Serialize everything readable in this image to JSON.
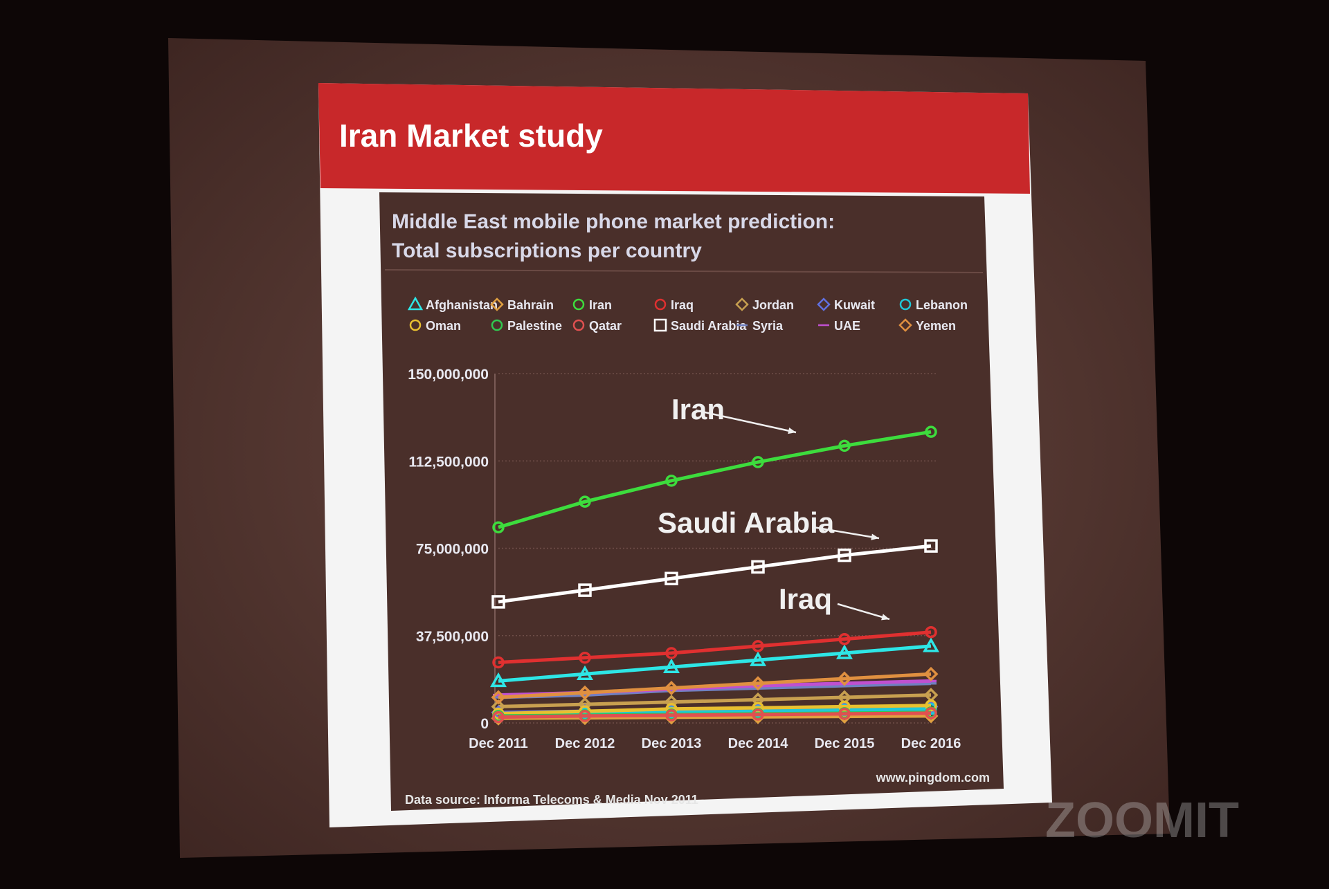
{
  "slide_title": "Iran Market study",
  "watermark": "ZOOMIT",
  "chart_data": {
    "type": "line",
    "title": [
      "Middle East mobile phone market prediction:",
      "Total subscriptions per country"
    ],
    "source": "Data source: Informa Telecoms & Media Nov 2011",
    "credit": "www.pingdom.com",
    "annotations": [
      "Iran",
      "Saudi Arabia",
      "Iraq"
    ],
    "categories": [
      "Dec 2011",
      "Dec 2012",
      "Dec 2013",
      "Dec 2014",
      "Dec 2015",
      "Dec 2016"
    ],
    "ylim": [
      0,
      150000000
    ],
    "yticks": [
      0,
      {
        "value": 37500000,
        "label": "37,500,000"
      },
      {
        "value": 75000000,
        "label": "75,000,000"
      },
      {
        "value": 112500000,
        "label": "112,500,000"
      },
      {
        "value": 150000000,
        "label": "150,000,000"
      }
    ],
    "grid": true,
    "series": [
      {
        "name": "Afghanistan",
        "color": "#2ee6e6",
        "marker": "triangle",
        "values": [
          18000000,
          21000000,
          24000000,
          27000000,
          30000000,
          33000000
        ]
      },
      {
        "name": "Bahrain",
        "color": "#e0a040",
        "marker": "diamond",
        "values": [
          2000000,
          2200000,
          2400000,
          2600000,
          2800000,
          3000000
        ]
      },
      {
        "name": "Iran",
        "color": "#3ddc3d",
        "marker": "circle",
        "values": [
          84000000,
          95000000,
          104000000,
          112000000,
          119000000,
          125000000
        ]
      },
      {
        "name": "Iraq",
        "color": "#e03030",
        "marker": "circle",
        "values": [
          26000000,
          28000000,
          30000000,
          33000000,
          36000000,
          39000000
        ]
      },
      {
        "name": "Jordan",
        "color": "#c8a050",
        "marker": "diamond",
        "values": [
          7000000,
          8000000,
          9000000,
          10000000,
          11000000,
          12000000
        ]
      },
      {
        "name": "Kuwait",
        "color": "#6070e0",
        "marker": "diamond",
        "values": [
          4500000,
          5000000,
          5500000,
          6000000,
          6500000,
          7000000
        ]
      },
      {
        "name": "Lebanon",
        "color": "#20c8d8",
        "marker": "circle",
        "values": [
          3500000,
          4000000,
          4500000,
          5000000,
          5500000,
          6000000
        ]
      },
      {
        "name": "Oman",
        "color": "#e8c030",
        "marker": "circle",
        "values": [
          4000000,
          5000000,
          6000000,
          6500000,
          7000000,
          7500000
        ]
      },
      {
        "name": "Palestine",
        "color": "#30c850",
        "marker": "circle",
        "values": [
          3000000,
          3300000,
          3600000,
          3900000,
          4200000,
          4500000
        ]
      },
      {
        "name": "Qatar",
        "color": "#e05050",
        "marker": "circle",
        "values": [
          2500000,
          3000000,
          3300000,
          3600000,
          3900000,
          4200000
        ]
      },
      {
        "name": "Saudi Arabia",
        "color": "#ffffff",
        "marker": "square",
        "values": [
          52000000,
          57000000,
          62000000,
          67000000,
          72000000,
          76000000
        ]
      },
      {
        "name": "Syria",
        "color": "#7080c0",
        "marker": "line",
        "values": [
          11000000,
          12000000,
          14000000,
          15000000,
          16000000,
          17000000
        ]
      },
      {
        "name": "UAE",
        "color": "#c050d0",
        "marker": "line",
        "values": [
          12000000,
          13000000,
          14500000,
          16000000,
          17000000,
          18000000
        ]
      },
      {
        "name": "Yemen",
        "color": "#e09040",
        "marker": "diamond",
        "values": [
          11000000,
          13000000,
          15000000,
          17000000,
          19000000,
          21000000
        ]
      }
    ]
  }
}
